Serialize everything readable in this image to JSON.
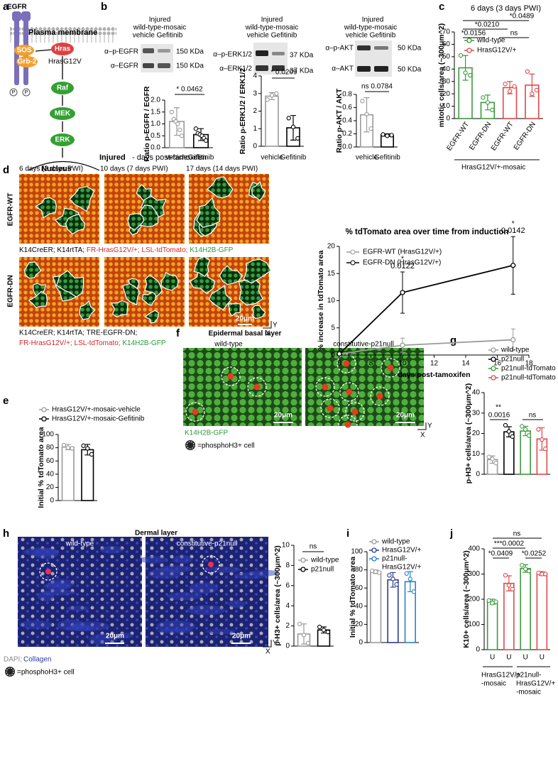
{
  "figure": {
    "labels": [
      "a",
      "b",
      "c",
      "d",
      "e",
      "f",
      "g",
      "h",
      "i",
      "j"
    ],
    "a": {
      "egfr": "EGFR",
      "membrane": "Plasma membrane",
      "sos": "SOS",
      "grb2": "Grb-2",
      "hras": "Hras",
      "hras_mut": "HrasG12V",
      "raf": "Raf",
      "mek": "MEK",
      "erk": "ERK",
      "nucleus": "Nucleus",
      "phospho": "P"
    },
    "b": {
      "blots": [
        {
          "header": [
            "Injured",
            "wild-type-mosaic",
            "vehicle Gefitinib"
          ],
          "antibodies": [
            "α–p-EGFR",
            "α–EGFR"
          ],
          "sizes": [
            "150 KDa",
            "150 KDa"
          ]
        },
        {
          "header": [
            "Injured",
            "wild-type-mosaic",
            "vehicle Gefitinib"
          ],
          "antibodies": [
            "α–p-ERK1/2",
            "α–ERK1/2"
          ],
          "sizes": [
            "37 KDa",
            "37 KDa"
          ]
        },
        {
          "header": [
            "Injured",
            "wild-type-mosaic",
            "vehicle Gefitinib"
          ],
          "antibodies": [
            "α–p-AKT",
            "α–AKT"
          ],
          "sizes": [
            "50 KDa",
            "50 KDa"
          ]
        }
      ]
    },
    "d": {
      "title_bold": "Injured",
      "title_rest": "- days post-tamoxifen",
      "columns": [
        "6 days (3 days PWI)",
        "10 days (7 days PWI)",
        "17 days (14 days PWI)"
      ],
      "rows": [
        "EGFR-WT",
        "EGFR-DN"
      ],
      "genotype_wt": [
        "K14CreER; K14rtTA;",
        "FR-HrasG12V/+;",
        "LSL-tdTomato;",
        "K14H2B-GFP"
      ],
      "genotype_dn": [
        "K14CreER; K14rtTA; TRE-EGFR-DN;",
        "FR-HrasG12V/+;",
        "LSL-tdTomato;",
        "K14H2B-GFP"
      ],
      "scale": "20μm",
      "axis_y": "Y",
      "axis_x": "X"
    },
    "f": {
      "title": "Epidermal basal layer",
      "columns": [
        "wild-type",
        "constitutive-p21null"
      ],
      "stain": "K14H2B-GFP",
      "key": "=phosphoH3+ cell",
      "scale": "20μm",
      "axis_y": "Y",
      "axis_x": "X"
    },
    "h": {
      "title": "Dermal layer",
      "columns": [
        "wild-type",
        "constitutive-p21null"
      ],
      "stain": [
        "DAPI;",
        "Collagen"
      ],
      "key": "=phosphoH3+ cell",
      "scale": "20μm",
      "axis_y": "Y",
      "axis_x": "X"
    }
  },
  "chart_data": [
    {
      "type": "bar",
      "ylabel": "Ratio p-EGFR / EGFR",
      "categories": [
        "vehicle",
        "Gefitinib"
      ],
      "values": [
        1.1,
        0.55
      ],
      "errors": [
        0.58,
        0.25
      ],
      "points": [
        [
          1.5,
          1.2,
          1.1,
          1.0,
          0.75,
          0.5
        ],
        [
          0.8,
          0.6,
          0.55,
          0.5,
          0.4,
          0.3
        ]
      ],
      "colors": [
        "#9a9a9a",
        "#000000"
      ],
      "ylim": [
        0,
        2
      ],
      "yticks": [
        {
          "value": 0,
          "label": "0.0"
        },
        {
          "value": 0.5,
          "label": "0.5"
        },
        {
          "value": 1,
          "label": "1.0"
        },
        {
          "value": 1.5,
          "label": "1.5"
        },
        {
          "value": 2,
          "label": "2.0"
        }
      ],
      "annotations": [
        "* 0.0462"
      ]
    },
    {
      "type": "bar",
      "ylabel": "Ratio p-ERK1/2 / ERK1/2",
      "categories": [
        "vehicle",
        "Gefitinib"
      ],
      "values": [
        2.85,
        1.05
      ],
      "errors": [
        0.2,
        0.7
      ],
      "points": [
        [
          2.65,
          2.9,
          3.0
        ],
        [
          1.6,
          1.1,
          0.45
        ]
      ],
      "colors": [
        "#9a9a9a",
        "#000000"
      ],
      "ylim": [
        0,
        4
      ],
      "yticks": [
        0,
        1,
        2,
        3,
        4
      ],
      "annotations": [
        "* 0.0209"
      ]
    },
    {
      "type": "bar",
      "ylabel": "Ratio p-AKT / AKT",
      "categories": [
        "vehicle",
        "Gefitinib"
      ],
      "values": [
        0.49,
        0.18
      ],
      "errors": [
        0.26,
        0.02
      ],
      "points": [
        [
          0.7,
          0.5,
          0.28
        ],
        [
          0.19,
          0.17,
          0.18
        ]
      ],
      "colors": [
        "#9a9a9a",
        "#000000"
      ],
      "ylim": [
        0,
        0.8
      ],
      "yticks": [
        {
          "value": 0,
          "label": "0.0"
        },
        {
          "value": 0.2,
          "label": "0.2"
        },
        {
          "value": 0.4,
          "label": "0.4"
        },
        {
          "value": 0.6,
          "label": "0.6"
        },
        {
          "value": 0.8,
          "label": "0.8"
        }
      ],
      "annotations": [
        "ns 0.0784"
      ]
    },
    {
      "type": "bar",
      "title": "6 days (3 days PWI)",
      "ylabel": "mitotic cells/area (~300μm^2)",
      "categories": [
        "EGFR-WT",
        "EGFR-DN",
        "EGFR-WT",
        "EGFR-DN"
      ],
      "values": [
        41,
        13,
        25,
        27
      ],
      "errors": [
        10,
        6,
        5,
        9
      ],
      "points": [
        [
          51,
          37,
          35
        ],
        [
          17,
          13,
          7
        ],
        [
          28,
          22,
          26
        ],
        [
          38,
          20,
          23
        ]
      ],
      "colors": [
        "#3c9a3c",
        "#3c9a3c",
        "#e0484a",
        "#e0484a"
      ],
      "legend": [
        {
          "name": "wild-type",
          "color": "#3c9a3c"
        },
        {
          "name": "HrasG12V/+",
          "color": "#e0484a"
        }
      ],
      "ylim": [
        0,
        70
      ],
      "yticks": [
        0,
        10,
        20,
        30,
        40,
        50,
        60,
        70
      ],
      "annotations": [
        "*0.0489",
        "*0.0210",
        "*0.0156",
        "ns"
      ],
      "groups": [
        [
          "HrasG12V/+-mosaic"
        ]
      ]
    },
    {
      "type": "line",
      "title": "% tdTomato area over time from induction",
      "ylabel": "% increase in tdTomato area",
      "xlabel": "days post-tamoxifen",
      "x": [
        6,
        10,
        17
      ],
      "series": [
        {
          "name": "EGFR-WT (HrasG12V/+)",
          "color": "#9a9a9a",
          "values": [
            0.2,
            1.8,
            2.8
          ],
          "errors": [
            0.3,
            1.3,
            2.0
          ]
        },
        {
          "name": "EGFR-DN (HrasG12V/+)",
          "color": "#000000",
          "values": [
            0.2,
            11.5,
            16.5
          ],
          "errors": [
            0.3,
            3.8,
            5.3
          ]
        }
      ],
      "xlim": [
        6,
        18
      ],
      "xticks": [
        6,
        8,
        10,
        12,
        14,
        16,
        18
      ],
      "ylim": [
        0,
        20
      ],
      "yticks": [
        0,
        5,
        10,
        15,
        20
      ],
      "annotations": [
        "*",
        "0.0122",
        "*",
        "0.0142"
      ]
    },
    {
      "type": "bar",
      "ylabel": "Initial % tdTomato area",
      "values": [
        81,
        77
      ],
      "errors": [
        4,
        8
      ],
      "points": [
        [
          84,
          80,
          79
        ],
        [
          83,
          79,
          70
        ]
      ],
      "colors": [
        "#9a9a9a",
        "#000000"
      ],
      "legend": [
        {
          "name": "HrasG12V/+-mosaic-vehicle",
          "color": "#9a9a9a"
        },
        {
          "name": "HrasG12V/+-mosaic-Gefitinib",
          "color": "#000000"
        }
      ],
      "ylim": [
        0,
        100
      ],
      "yticks": [
        0,
        20,
        40,
        60,
        80,
        100
      ]
    },
    {
      "type": "bar",
      "ylabel": "p-H3+ cells/area (~300μm^2)",
      "values": [
        7.2,
        20.8,
        21.2,
        17.3
      ],
      "errors": [
        1.8,
        2.5,
        2.3,
        5.5
      ],
      "points": [
        [
          8.5,
          7.5,
          5.5
        ],
        [
          24,
          21,
          18.5
        ],
        [
          23.5,
          22,
          19
        ],
        [
          22,
          17,
          12.5
        ]
      ],
      "colors": [
        "#9a9a9a",
        "#000000",
        "#3c9a3c",
        "#e0484a"
      ],
      "legend": [
        {
          "name": "wild-type",
          "color": "#9a9a9a"
        },
        {
          "name": "p21null",
          "color": "#000000"
        },
        {
          "name": "p21null-tdTomato -",
          "color": "#3c9a3c"
        },
        {
          "name": "p21null-tdTomato +",
          "color": "#e0484a"
        }
      ],
      "ylim": [
        0,
        40
      ],
      "yticks": [
        0,
        10,
        20,
        30,
        40
      ],
      "annotations": [
        "**",
        "0.0016",
        "ns"
      ]
    },
    {
      "type": "bar",
      "ylabel": "p-H3+ cells/area (~300μm^2)",
      "values": [
        1.2,
        1.6
      ],
      "errors": [
        1.0,
        0.3
      ],
      "points": [
        [
          2.2,
          1.1,
          0.3
        ],
        [
          1.9,
          1.6,
          1.4
        ]
      ],
      "colors": [
        "#9a9a9a",
        "#000000"
      ],
      "legend": [
        {
          "name": "wild-type",
          "color": "#9a9a9a"
        },
        {
          "name": "p21null",
          "color": "#000000"
        }
      ],
      "ylim": [
        0,
        10
      ],
      "yticks": [
        0,
        2,
        4,
        6,
        8,
        10
      ],
      "annotations": [
        "ns"
      ]
    },
    {
      "type": "bar",
      "ylabel": "Initial % tdTomato area",
      "values": [
        78,
        69,
        67
      ],
      "errors": [
        2,
        8,
        11
      ],
      "points": [
        [
          79,
          78,
          77
        ],
        [
          74,
          70,
          64
        ],
        [
          76,
          70,
          56
        ]
      ],
      "colors": [
        "#9a9a9a",
        "#2b3b8f",
        "#2a80c8"
      ],
      "legend": [
        {
          "name": "wild-type",
          "color": "#9a9a9a"
        },
        {
          "name": "HrasG12V/+",
          "color": "#2b3b8f"
        },
        {
          "name": [
            "p21null-",
            "HrasG12V/+"
          ],
          "color": "#2a80c8"
        }
      ],
      "ylim": [
        0,
        100
      ],
      "yticks": [
        0,
        20,
        40,
        60,
        80,
        100
      ]
    },
    {
      "type": "bar",
      "ylabel": "K10+ cells/area (~300μm^2)",
      "categories": [
        "U",
        "U",
        "U",
        "U"
      ],
      "values": [
        190,
        263,
        322,
        302
      ],
      "errors": [
        10,
        30,
        15,
        8
      ],
      "points": [
        [
          195,
          185,
          190
        ],
        [
          295,
          255,
          240
        ],
        [
          335,
          320,
          312
        ],
        [
          305,
          300,
          300
        ]
      ],
      "colors": [
        "#3c9a3c",
        "#e0484a",
        "#3c9a3c",
        "#e0484a"
      ],
      "ylim": [
        0,
        400
      ],
      "yticks": [
        0,
        100,
        200,
        300,
        400
      ],
      "annotations": [
        "ns",
        "***0.0002",
        "*0.0409",
        "*0.0252"
      ],
      "groups": [
        [
          "HrasG12V/+",
          "-mosaic"
        ],
        [
          "p21null-",
          "HrasG12V/+",
          "-mosaic"
        ]
      ]
    }
  ]
}
